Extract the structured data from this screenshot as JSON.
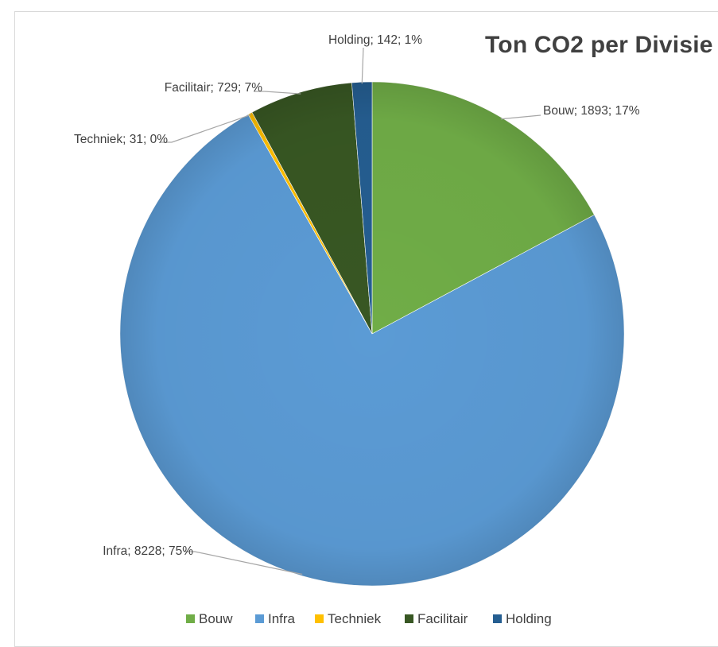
{
  "chart_data": {
    "type": "pie",
    "title": "Ton CO2 per Divisie",
    "slices": [
      {
        "name": "Bouw",
        "value": 1893,
        "percent": "17%",
        "color": "#70ad47",
        "label": "Bouw; 1893; 17%"
      },
      {
        "name": "Infra",
        "value": 8228,
        "percent": "75%",
        "color": "#5b9bd5",
        "label": "Infra; 8228; 75%"
      },
      {
        "name": "Techniek",
        "value": 31,
        "percent": "0%",
        "color": "#ffc000",
        "label": "Techniek; 31; 0%"
      },
      {
        "name": "Facilitair",
        "value": 729,
        "percent": "7%",
        "color": "#385723",
        "label": "Facilitair; 729; 7%"
      },
      {
        "name": "Holding",
        "value": 142,
        "percent": "1%",
        "color": "#255e91",
        "label": "Holding; 142; 1%"
      }
    ],
    "legend": {
      "position": "bottom",
      "entries": [
        "Bouw",
        "Infra",
        "Techniek",
        "Facilitair",
        "Holding"
      ]
    }
  }
}
